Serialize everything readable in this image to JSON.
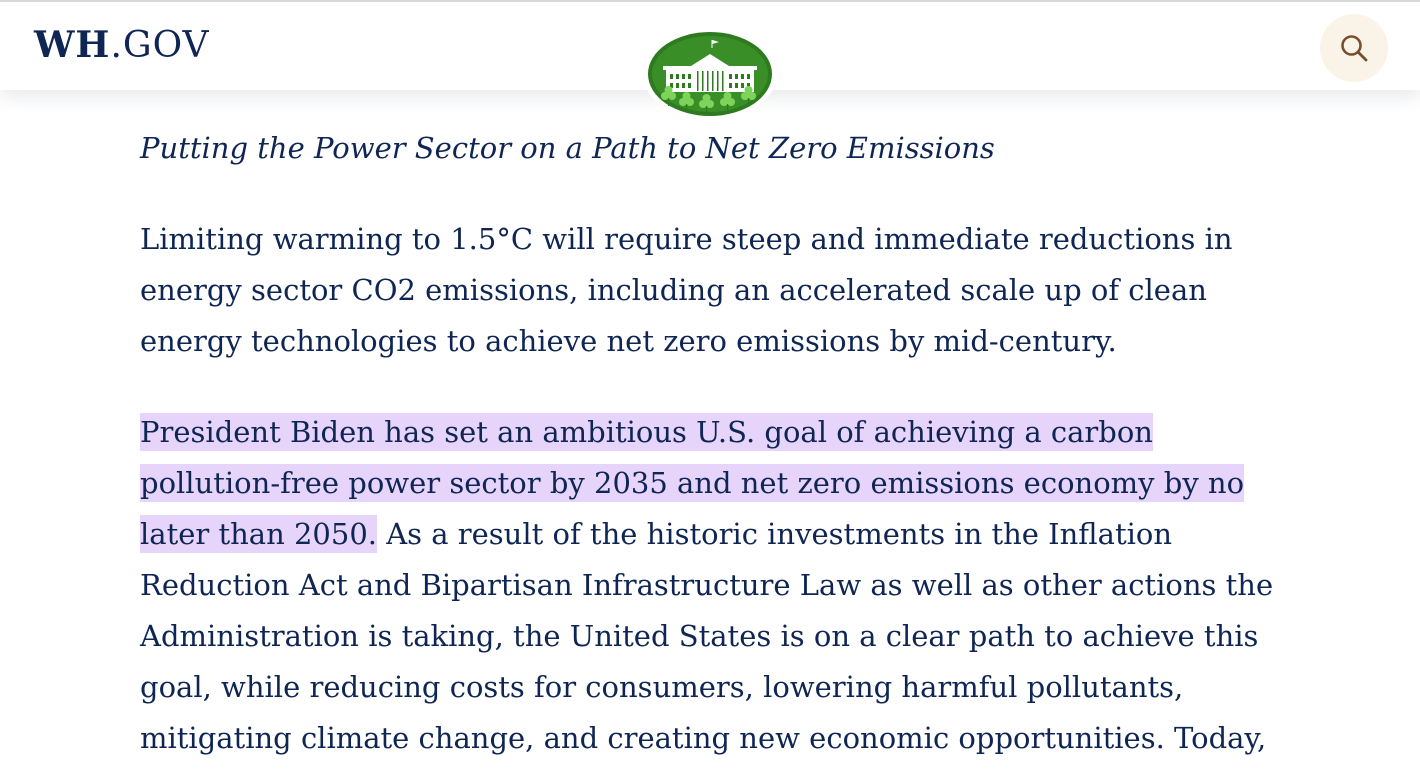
{
  "header": {
    "logo_wh": "WH",
    "logo_gov": ".GOV",
    "search_icon": "search-icon",
    "search_bg": "#faf4e8"
  },
  "article": {
    "subheading": "Putting the Power Sector on a Path to Net Zero Emissions",
    "p1": "Limiting warming to 1.5°C will require steep and immediate reductions in energy sector CO2 emissions, including an accelerated scale up of clean energy technologies to achieve net zero emissions by mid-century.",
    "p2_highlight": "President Biden has set an ambitious U.S. goal of achieving a carbon pollution-free power sector by 2035 and net zero emissions economy by no later than 2050.",
    "p2_rest": " As a result of the historic investments in the Inflation Reduction Act and Bipartisan Infrastructure Law as well as other actions the Administration is taking, the United States is on a clear path to achieve this goal, while reducing costs for consumers, lowering harmful pollutants, mitigating climate change, and creating new economic opportunities.  Today,",
    "highlight_color": "#e7d4fb",
    "text_color": "#0f2654"
  }
}
